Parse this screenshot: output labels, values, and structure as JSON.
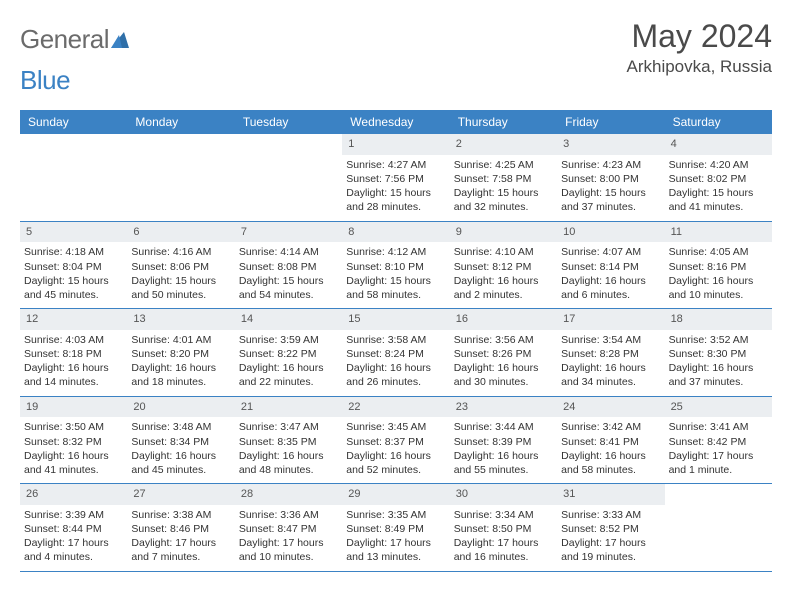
{
  "brand": {
    "part1": "General",
    "part2": "Blue"
  },
  "title": "May 2024",
  "location": "Arkhipovka, Russia",
  "colors": {
    "header_bg": "#3b82c4",
    "header_text": "#ffffff",
    "daynum_bg": "#ebeef1",
    "text": "#333333",
    "logo_gray": "#6b6b6b",
    "logo_blue": "#3b82c4",
    "border": "#3b82c4"
  },
  "dayNames": [
    "Sunday",
    "Monday",
    "Tuesday",
    "Wednesday",
    "Thursday",
    "Friday",
    "Saturday"
  ],
  "grid": {
    "startOffset": 3,
    "daysInMonth": 31
  },
  "days": {
    "1": {
      "sunrise": "4:27 AM",
      "sunset": "7:56 PM",
      "daylight": "Daylight: 15 hours and 28 minutes."
    },
    "2": {
      "sunrise": "4:25 AM",
      "sunset": "7:58 PM",
      "daylight": "Daylight: 15 hours and 32 minutes."
    },
    "3": {
      "sunrise": "4:23 AM",
      "sunset": "8:00 PM",
      "daylight": "Daylight: 15 hours and 37 minutes."
    },
    "4": {
      "sunrise": "4:20 AM",
      "sunset": "8:02 PM",
      "daylight": "Daylight: 15 hours and 41 minutes."
    },
    "5": {
      "sunrise": "4:18 AM",
      "sunset": "8:04 PM",
      "daylight": "Daylight: 15 hours and 45 minutes."
    },
    "6": {
      "sunrise": "4:16 AM",
      "sunset": "8:06 PM",
      "daylight": "Daylight: 15 hours and 50 minutes."
    },
    "7": {
      "sunrise": "4:14 AM",
      "sunset": "8:08 PM",
      "daylight": "Daylight: 15 hours and 54 minutes."
    },
    "8": {
      "sunrise": "4:12 AM",
      "sunset": "8:10 PM",
      "daylight": "Daylight: 15 hours and 58 minutes."
    },
    "9": {
      "sunrise": "4:10 AM",
      "sunset": "8:12 PM",
      "daylight": "Daylight: 16 hours and 2 minutes."
    },
    "10": {
      "sunrise": "4:07 AM",
      "sunset": "8:14 PM",
      "daylight": "Daylight: 16 hours and 6 minutes."
    },
    "11": {
      "sunrise": "4:05 AM",
      "sunset": "8:16 PM",
      "daylight": "Daylight: 16 hours and 10 minutes."
    },
    "12": {
      "sunrise": "4:03 AM",
      "sunset": "8:18 PM",
      "daylight": "Daylight: 16 hours and 14 minutes."
    },
    "13": {
      "sunrise": "4:01 AM",
      "sunset": "8:20 PM",
      "daylight": "Daylight: 16 hours and 18 minutes."
    },
    "14": {
      "sunrise": "3:59 AM",
      "sunset": "8:22 PM",
      "daylight": "Daylight: 16 hours and 22 minutes."
    },
    "15": {
      "sunrise": "3:58 AM",
      "sunset": "8:24 PM",
      "daylight": "Daylight: 16 hours and 26 minutes."
    },
    "16": {
      "sunrise": "3:56 AM",
      "sunset": "8:26 PM",
      "daylight": "Daylight: 16 hours and 30 minutes."
    },
    "17": {
      "sunrise": "3:54 AM",
      "sunset": "8:28 PM",
      "daylight": "Daylight: 16 hours and 34 minutes."
    },
    "18": {
      "sunrise": "3:52 AM",
      "sunset": "8:30 PM",
      "daylight": "Daylight: 16 hours and 37 minutes."
    },
    "19": {
      "sunrise": "3:50 AM",
      "sunset": "8:32 PM",
      "daylight": "Daylight: 16 hours and 41 minutes."
    },
    "20": {
      "sunrise": "3:48 AM",
      "sunset": "8:34 PM",
      "daylight": "Daylight: 16 hours and 45 minutes."
    },
    "21": {
      "sunrise": "3:47 AM",
      "sunset": "8:35 PM",
      "daylight": "Daylight: 16 hours and 48 minutes."
    },
    "22": {
      "sunrise": "3:45 AM",
      "sunset": "8:37 PM",
      "daylight": "Daylight: 16 hours and 52 minutes."
    },
    "23": {
      "sunrise": "3:44 AM",
      "sunset": "8:39 PM",
      "daylight": "Daylight: 16 hours and 55 minutes."
    },
    "24": {
      "sunrise": "3:42 AM",
      "sunset": "8:41 PM",
      "daylight": "Daylight: 16 hours and 58 minutes."
    },
    "25": {
      "sunrise": "3:41 AM",
      "sunset": "8:42 PM",
      "daylight": "Daylight: 17 hours and 1 minute."
    },
    "26": {
      "sunrise": "3:39 AM",
      "sunset": "8:44 PM",
      "daylight": "Daylight: 17 hours and 4 minutes."
    },
    "27": {
      "sunrise": "3:38 AM",
      "sunset": "8:46 PM",
      "daylight": "Daylight: 17 hours and 7 minutes."
    },
    "28": {
      "sunrise": "3:36 AM",
      "sunset": "8:47 PM",
      "daylight": "Daylight: 17 hours and 10 minutes."
    },
    "29": {
      "sunrise": "3:35 AM",
      "sunset": "8:49 PM",
      "daylight": "Daylight: 17 hours and 13 minutes."
    },
    "30": {
      "sunrise": "3:34 AM",
      "sunset": "8:50 PM",
      "daylight": "Daylight: 17 hours and 16 minutes."
    },
    "31": {
      "sunrise": "3:33 AM",
      "sunset": "8:52 PM",
      "daylight": "Daylight: 17 hours and 19 minutes."
    }
  }
}
